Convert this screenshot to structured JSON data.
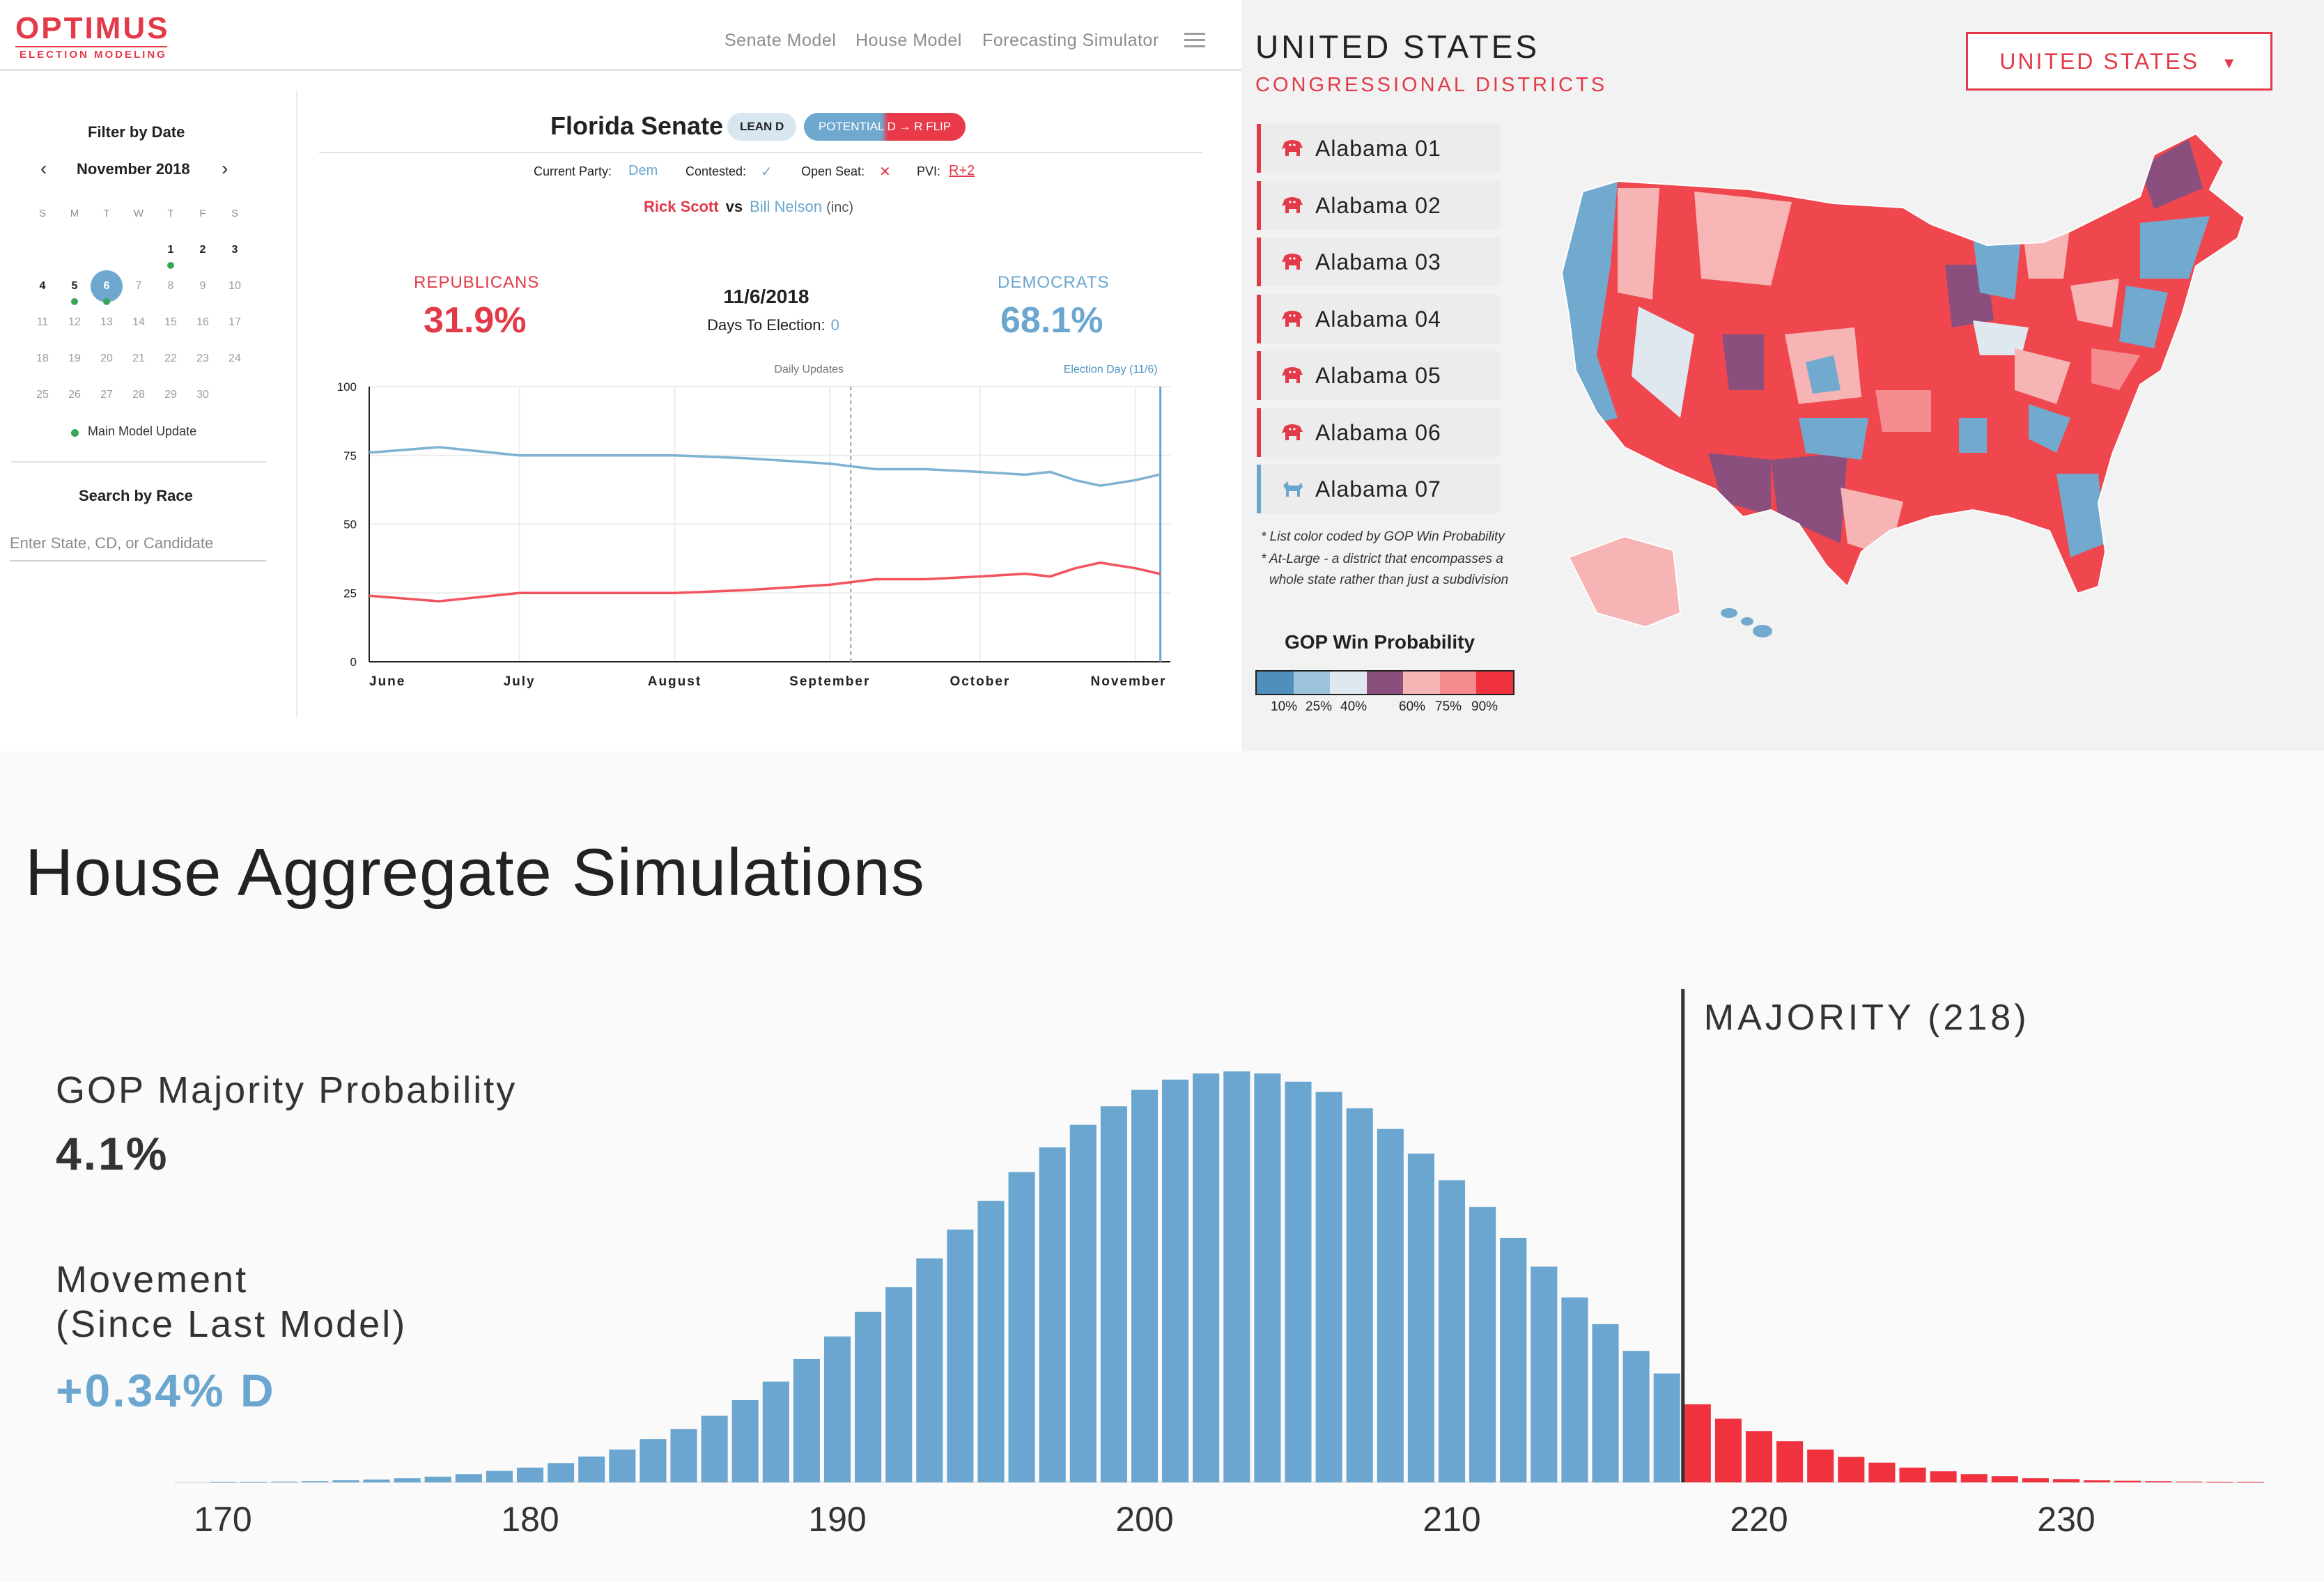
{
  "nav": {
    "logo_main": "OPTIMUS",
    "logo_sub": "ELECTION MODELING",
    "links": [
      "Senate Model",
      "House Model",
      "Forecasting Simulator"
    ]
  },
  "sidebar": {
    "filter_title": "Filter by Date",
    "month": "November 2018",
    "weekdays": [
      "S",
      "M",
      "T",
      "W",
      "T",
      "F",
      "S"
    ],
    "weeks": [
      [
        "",
        "",
        "",
        "",
        "1",
        "2",
        "3"
      ],
      [
        "4",
        "5",
        "6",
        "7",
        "8",
        "9",
        "10"
      ],
      [
        "11",
        "12",
        "13",
        "14",
        "15",
        "16",
        "17"
      ],
      [
        "18",
        "19",
        "20",
        "21",
        "22",
        "23",
        "24"
      ],
      [
        "25",
        "26",
        "27",
        "28",
        "29",
        "30",
        ""
      ]
    ],
    "legend_label": "Main Model Update",
    "search_title": "Search by Race",
    "search_placeholder": "Enter State, CD, or Candidate"
  },
  "race": {
    "title": "Florida Senate",
    "lean_badge": "LEAN D",
    "flip_badge": "POTENTIAL D → R FLIP",
    "current_party_label": "Current Party:",
    "current_party_value": "Dem",
    "contested_label": "Contested:",
    "contested_value": "✓",
    "open_seat_label": "Open Seat:",
    "open_seat_value": "✕",
    "pvi_label": "PVI:",
    "pvi_value": "R+2",
    "rep_candidate": "Rick Scott",
    "vs": "vs",
    "dem_candidate": "Bill Nelson",
    "dem_incumbent": "(inc)",
    "rep_label": "REPUBLICANS",
    "rep_pct": "31.9%",
    "dem_label": "DEMOCRATS",
    "dem_pct": "68.1%",
    "date": "11/6/2018",
    "days_label": "Days To Election:",
    "days_value": "0",
    "colors": {
      "rep": "#f2535e",
      "dem": "#7fb1d3"
    }
  },
  "map": {
    "title": "UNITED STATES",
    "subtitle": "CONGRESSIONAL DISTRICTS",
    "select_value": "UNITED STATES",
    "districts": [
      {
        "label": "Alabama 01",
        "party": "rep"
      },
      {
        "label": "Alabama 02",
        "party": "rep"
      },
      {
        "label": "Alabama 03",
        "party": "rep"
      },
      {
        "label": "Alabama 04",
        "party": "rep"
      },
      {
        "label": "Alabama 05",
        "party": "rep"
      },
      {
        "label": "Alabama 06",
        "party": "rep"
      },
      {
        "label": "Alabama 07",
        "party": "dem"
      }
    ],
    "note_1": "* List color coded by GOP Win Probability",
    "note_2": "* At-Large - a district that encompasses a",
    "note_3": "whole state rather than just a subdivision",
    "legend_title": "GOP Win Probability",
    "legend_colors": [
      "#4f8fbd",
      "#9cc2dc",
      "#dfe8ef",
      "#8a4f7d",
      "#f6b4b4",
      "#f58a8f",
      "#f0323f"
    ],
    "legend_ticks": [
      "10%",
      "25%",
      "40%",
      "60%",
      "75%",
      "90%"
    ]
  },
  "simulations": {
    "title": "House Aggregate Simulations",
    "gop_prob_label": "GOP Majority Probability",
    "gop_prob_value": "4.1%",
    "movement_label_1": "Movement",
    "movement_label_2": "(Since Last Model)",
    "movement_value": "+0.34% D",
    "colors": {
      "dem": "#6aa6cf",
      "rep": "#f0323f"
    }
  },
  "chart_data": [
    {
      "type": "line",
      "title": "",
      "xlabel": "",
      "ylabel": "",
      "top_labels": [
        "Daily Updates",
        "Election Day (11/6)"
      ],
      "x_ticks": [
        "June",
        "July",
        "August",
        "September",
        "October",
        "November"
      ],
      "y_ticks": [
        0,
        25,
        50,
        75,
        100
      ],
      "ylim": [
        0,
        100
      ],
      "grid": true,
      "x": [
        "2018-06-01",
        "2018-06-15",
        "2018-07-01",
        "2018-07-15",
        "2018-08-01",
        "2018-08-15",
        "2018-09-01",
        "2018-09-10",
        "2018-09-20",
        "2018-10-01",
        "2018-10-10",
        "2018-10-15",
        "2018-10-20",
        "2018-10-25",
        "2018-11-01",
        "2018-11-06"
      ],
      "series": [
        {
          "name": "DEMOCRATS",
          "values": [
            76,
            78,
            75,
            75,
            75,
            74,
            72,
            70,
            70,
            69,
            68,
            69,
            66,
            64,
            66,
            68.1
          ]
        },
        {
          "name": "REPUBLICANS",
          "values": [
            24,
            22,
            25,
            25,
            25,
            26,
            28,
            30,
            30,
            31,
            32,
            31,
            34,
            36,
            34,
            31.9
          ]
        }
      ]
    },
    {
      "type": "bar",
      "title": "House Aggregate Simulations",
      "xlabel": "",
      "ylabel": "",
      "x_ticks": [
        170,
        180,
        190,
        200,
        210,
        220,
        230
      ],
      "annotation": "MAJORITY (218)",
      "majority_threshold": 218,
      "categories": [
        170,
        171,
        172,
        173,
        174,
        175,
        176,
        177,
        178,
        179,
        180,
        181,
        182,
        183,
        184,
        185,
        186,
        187,
        188,
        189,
        190,
        191,
        192,
        193,
        194,
        195,
        196,
        197,
        198,
        199,
        200,
        201,
        202,
        203,
        204,
        205,
        206,
        207,
        208,
        209,
        210,
        211,
        212,
        213,
        214,
        215,
        216,
        217,
        218,
        219,
        220,
        221,
        222,
        223,
        224,
        225,
        226,
        227,
        228,
        229,
        230,
        231,
        232,
        233,
        234,
        235,
        236
      ],
      "values": [
        0.1,
        0.1,
        0.2,
        0.3,
        0.5,
        0.7,
        1.0,
        1.4,
        2.0,
        2.8,
        3.6,
        4.7,
        6.3,
        8.0,
        10.5,
        13.0,
        16.2,
        20.0,
        24.5,
        30.0,
        35.5,
        41.5,
        47.5,
        54.5,
        61.5,
        68.5,
        75.5,
        81.5,
        87.0,
        91.5,
        95.5,
        98.0,
        99.5,
        100.0,
        99.5,
        97.5,
        95.0,
        91.0,
        86.0,
        80.0,
        73.5,
        67.0,
        59.5,
        52.5,
        45.0,
        38.5,
        32.0,
        26.5,
        19.0,
        15.5,
        12.5,
        10.0,
        8.0,
        6.2,
        4.8,
        3.6,
        2.7,
        2.0,
        1.5,
        1.0,
        0.8,
        0.5,
        0.4,
        0.3,
        0.2,
        0.1,
        0.1
      ]
    }
  ]
}
